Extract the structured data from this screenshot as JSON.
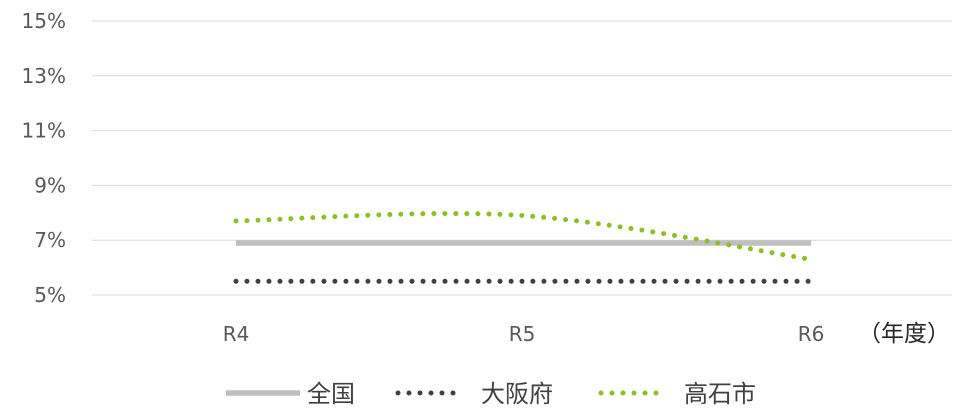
{
  "chart_data": {
    "type": "line",
    "categories": [
      "R4",
      "R5",
      "R6"
    ],
    "x_unit_label": "（年度）",
    "ylim": [
      5,
      15
    ],
    "y_ticks": [
      5,
      7,
      9,
      11,
      13,
      15
    ],
    "y_tick_labels": [
      "5%",
      "7%",
      "9%",
      "11%",
      "13%",
      "15%"
    ],
    "grid": true,
    "legend_position": "bottom",
    "series": [
      {
        "name": "全国",
        "values": [
          6.9,
          6.9,
          6.9
        ],
        "color": "#bfbfbf",
        "style": "solid"
      },
      {
        "name": "大阪府",
        "values": [
          5.5,
          5.5,
          5.5
        ],
        "color": "#404040",
        "style": "dotted"
      },
      {
        "name": "高石市",
        "values": [
          7.7,
          7.9,
          6.3
        ],
        "color": "#8cbf26",
        "style": "dotted"
      }
    ]
  }
}
